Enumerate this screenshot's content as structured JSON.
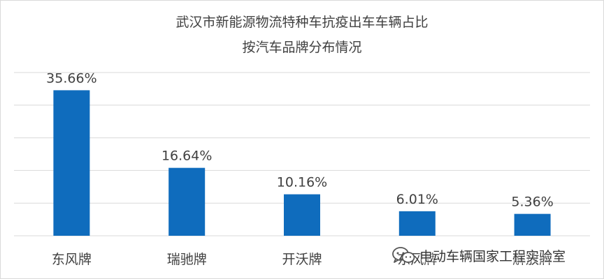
{
  "chart_data": {
    "type": "bar",
    "title": "武汉市新能源物流特种车抗疫出车车辆占比",
    "subtitle": "按汽车品牌分布情况",
    "categories": [
      "东风牌",
      "瑞驰牌",
      "开沃牌",
      "东风牌",
      "解放牌"
    ],
    "values": [
      35.66,
      16.64,
      10.16,
      6.01,
      5.36
    ],
    "value_labels": [
      "35.66%",
      "16.64%",
      "10.16%",
      "6.01%",
      "5.36%"
    ],
    "ylim": [
      0,
      40
    ],
    "gridlines": [
      0,
      8,
      16,
      24,
      32,
      40
    ],
    "grid": true,
    "bar_color": "#0f6cbd",
    "gridline_color": "#d9d9d9",
    "xlabel": "",
    "ylabel": ""
  },
  "watermark": {
    "text": "电动车辆国家工程实验室",
    "icon": "wechat-icon"
  }
}
